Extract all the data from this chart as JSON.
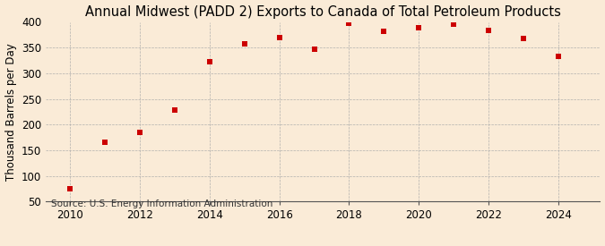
{
  "title": "Annual Midwest (PADD 2) Exports to Canada of Total Petroleum Products",
  "ylabel": "Thousand Barrels per Day",
  "source": "Source: U.S. Energy Information Administration",
  "years": [
    2010,
    2011,
    2012,
    2013,
    2014,
    2015,
    2016,
    2017,
    2018,
    2019,
    2020,
    2021,
    2022,
    2023,
    2024
  ],
  "values": [
    75,
    165,
    185,
    228,
    323,
    357,
    370,
    347,
    397,
    382,
    388,
    396,
    383,
    367,
    333
  ],
  "marker_color": "#cc0000",
  "marker": "s",
  "marker_size": 22,
  "ylim": [
    50,
    400
  ],
  "yticks": [
    50,
    100,
    150,
    200,
    250,
    300,
    350,
    400
  ],
  "xticks": [
    2010,
    2012,
    2014,
    2016,
    2018,
    2020,
    2022,
    2024
  ],
  "xlim": [
    2009.3,
    2025.2
  ],
  "background_color": "#faebd7",
  "grid_color": "#aaaaaa",
  "title_fontsize": 10.5,
  "label_fontsize": 8.5,
  "tick_fontsize": 8.5,
  "source_fontsize": 7.5
}
